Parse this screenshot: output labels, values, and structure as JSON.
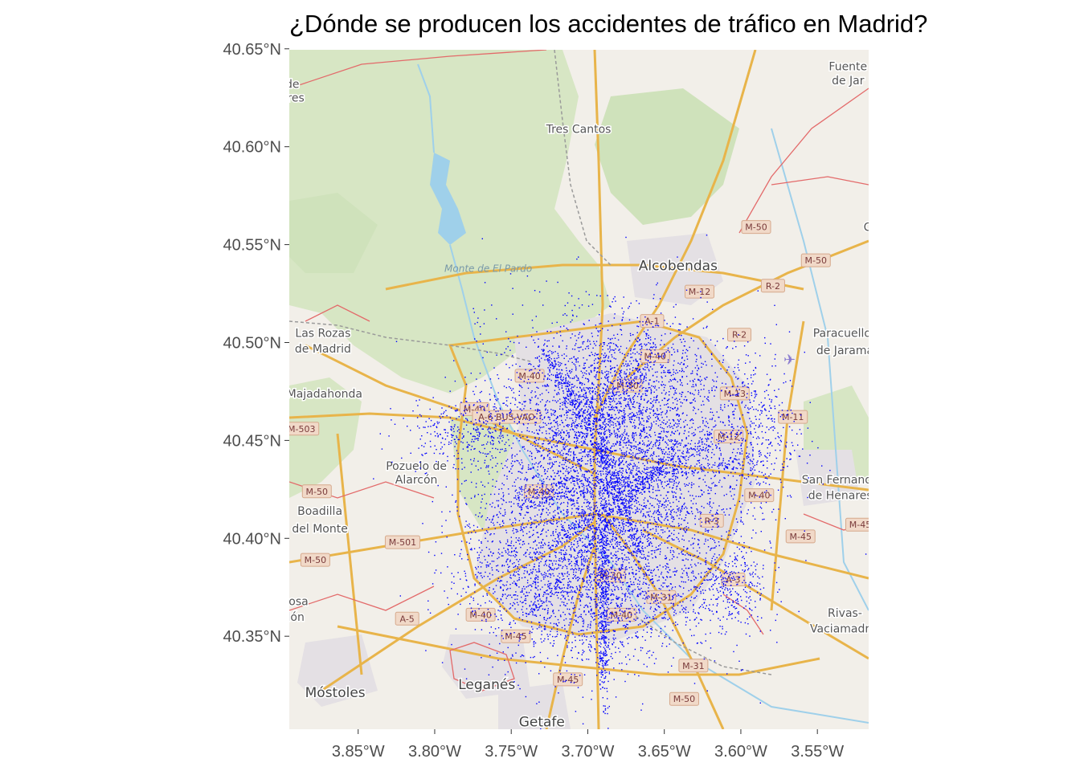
{
  "title": "¿Dónde se producen los accidentes de tráfico en Madrid?",
  "map": {
    "x_ticks": [
      "3.85°W",
      "3.80°W",
      "3.75°W",
      "3.70°W",
      "3.65°W",
      "3.60°W",
      "3.55°W"
    ],
    "y_ticks": [
      "40.65°N",
      "40.60°N",
      "40.55°N",
      "40.50°N",
      "40.45°N",
      "40.40°N",
      "40.35°N"
    ],
    "point_color": "#0000ff",
    "places": [
      {
        "id": "tres-cantos",
        "text": "Tres Cantos",
        "lon": -3.706,
        "lat": 40.609
      },
      {
        "id": "alcobendas",
        "text": "Alcobendas",
        "lon": -3.641,
        "lat": 40.539
      },
      {
        "id": "paracuellos-1",
        "text": "Paracuellos",
        "lon": -3.532,
        "lat": 40.505
      },
      {
        "id": "paracuellos-2",
        "text": "de Jarama",
        "lon": -3.532,
        "lat": 40.496
      },
      {
        "id": "las-rozas-1",
        "text": "Las Rozas",
        "lon": -3.873,
        "lat": 40.505
      },
      {
        "id": "las-rozas-2",
        "text": "de Madrid",
        "lon": -3.873,
        "lat": 40.497
      },
      {
        "id": "majadahonda",
        "text": "Majadahonda",
        "lon": -3.872,
        "lat": 40.474
      },
      {
        "id": "pozuelo-1",
        "text": "Pozuelo de",
        "lon": -3.812,
        "lat": 40.437
      },
      {
        "id": "pozuelo-2",
        "text": "Alarcón",
        "lon": -3.812,
        "lat": 40.43
      },
      {
        "id": "boadilla-1",
        "text": "Boadilla",
        "lon": -3.875,
        "lat": 40.414
      },
      {
        "id": "boadilla-2",
        "text": "del Monte",
        "lon": -3.875,
        "lat": 40.405
      },
      {
        "id": "san-fernando-1",
        "text": "San Fernando",
        "lon": -3.535,
        "lat": 40.43
      },
      {
        "id": "san-fernando-2",
        "text": "de Henares",
        "lon": -3.535,
        "lat": 40.422
      },
      {
        "id": "rivas-1",
        "text": "Rivas-",
        "lon": -3.532,
        "lat": 40.362
      },
      {
        "id": "rivas-2",
        "text": "Vaciamadrid",
        "lon": -3.532,
        "lat": 40.354
      },
      {
        "id": "mostoles",
        "text": "Móstoles",
        "lon": -3.865,
        "lat": 40.321
      },
      {
        "id": "leganes",
        "text": "Leganés",
        "lon": -3.766,
        "lat": 40.325
      },
      {
        "id": "getafe",
        "text": "Getafe",
        "lon": -3.73,
        "lat": 40.306
      },
      {
        "id": "fuente-1",
        "text": "Fuente",
        "lon": -3.53,
        "lat": 40.641
      },
      {
        "id": "fuente-2",
        "text": "de Jar",
        "lon": -3.53,
        "lat": 40.634
      },
      {
        "id": "edge-de",
        "text": "de",
        "lon": -3.893,
        "lat": 40.632
      },
      {
        "id": "edge-ares",
        "text": "ares",
        "lon": -3.893,
        "lat": 40.625
      },
      {
        "id": "edge-ciosa",
        "text": "ciosa",
        "lon": -3.892,
        "lat": 40.368
      },
      {
        "id": "edge-don",
        "text": "dón",
        "lon": -3.892,
        "lat": 40.36
      },
      {
        "id": "edge-co",
        "text": "Co",
        "lon": -3.515,
        "lat": 40.559
      }
    ],
    "park_label": {
      "text": "Monte de El Pardo",
      "lon": -3.765,
      "lat": 40.536
    },
    "shields": [
      {
        "text": "M-50",
        "lon": -3.59,
        "lat": 40.559
      },
      {
        "text": "M-50",
        "lon": -3.551,
        "lat": 40.542
      },
      {
        "text": "M-12",
        "lon": -3.627,
        "lat": 40.526
      },
      {
        "text": "R-2",
        "lon": -3.579,
        "lat": 40.529
      },
      {
        "text": "R-2",
        "lon": -3.601,
        "lat": 40.504
      },
      {
        "text": "A-1",
        "lon": -3.658,
        "lat": 40.511
      },
      {
        "text": "M-40",
        "lon": -3.656,
        "lat": 40.493
      },
      {
        "text": "M-40",
        "lon": -3.738,
        "lat": 40.483
      },
      {
        "text": "M-40",
        "lon": -3.774,
        "lat": 40.466
      },
      {
        "text": "M-30",
        "lon": -3.674,
        "lat": 40.478
      },
      {
        "text": "M-13",
        "lon": -3.604,
        "lat": 40.474
      },
      {
        "text": "M-11",
        "lon": -3.566,
        "lat": 40.462
      },
      {
        "text": "M-12",
        "lon": -3.608,
        "lat": 40.452
      },
      {
        "text": "A-6 BUS-VAO",
        "lon": -3.753,
        "lat": 40.462
      },
      {
        "text": "M-503",
        "lon": -3.887,
        "lat": 40.456
      },
      {
        "text": "M-50",
        "lon": -3.877,
        "lat": 40.424
      },
      {
        "text": "M-40",
        "lon": -3.732,
        "lat": 40.424
      },
      {
        "text": "M-40",
        "lon": -3.588,
        "lat": 40.422
      },
      {
        "text": "R-3",
        "lon": -3.619,
        "lat": 40.409
      },
      {
        "text": "M-45",
        "lon": -3.561,
        "lat": 40.401
      },
      {
        "text": "M-45",
        "lon": -3.522,
        "lat": 40.407
      },
      {
        "text": "M-501",
        "lon": -3.821,
        "lat": 40.398
      },
      {
        "text": "M-50",
        "lon": -3.878,
        "lat": 40.389
      },
      {
        "text": "M-30",
        "lon": -3.685,
        "lat": 40.381
      },
      {
        "text": "A-3",
        "lon": -3.605,
        "lat": 40.379
      },
      {
        "text": "M-31",
        "lon": -3.652,
        "lat": 40.37
      },
      {
        "text": "M-40",
        "lon": -3.678,
        "lat": 40.361
      },
      {
        "text": "M-40",
        "lon": -3.77,
        "lat": 40.361
      },
      {
        "text": "A-5",
        "lon": -3.818,
        "lat": 40.359
      },
      {
        "text": "M-45",
        "lon": -3.747,
        "lat": 40.35
      },
      {
        "text": "M-31",
        "lon": -3.631,
        "lat": 40.335
      },
      {
        "text": "M-45",
        "lon": -3.713,
        "lat": 40.328
      },
      {
        "text": "M-50",
        "lon": -3.637,
        "lat": 40.318
      }
    ]
  }
}
